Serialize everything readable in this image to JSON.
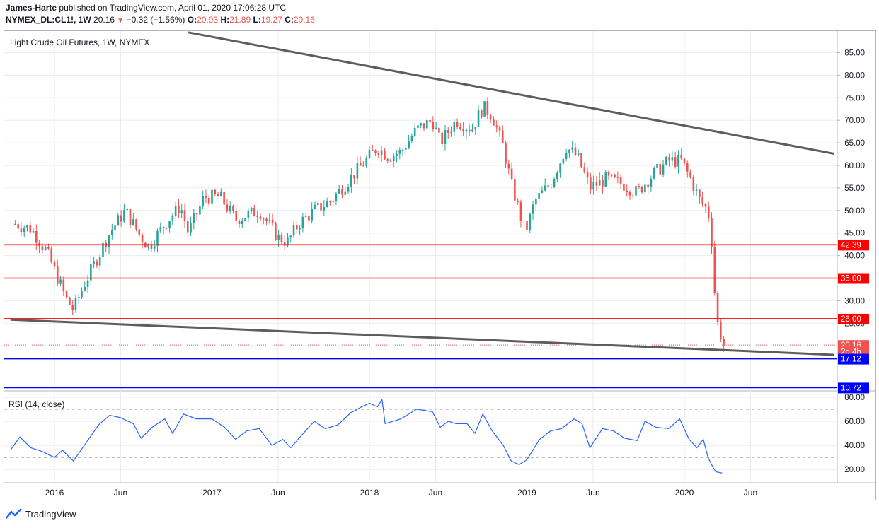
{
  "header": {
    "author": "James-Harte",
    "published": "published on TradingView.com, April 01, 2020 17:06:28 UTC",
    "symbol": "NYMEX_DL:CL1!, 1W",
    "last": "20.16",
    "change": "−0.32 (−1.56%)",
    "o_label": "O:",
    "o": "20.93",
    "h_label": "H:",
    "h": "21.89",
    "l_label": "L:",
    "l": "19.27",
    "c_label": "C:",
    "c": "20.16"
  },
  "footer": {
    "brand": "TradingView"
  },
  "colors": {
    "up": "#26a69a",
    "down": "#ef5350",
    "support": "#ff0000",
    "target": "#0000ff",
    "trend": "#5d5d5d",
    "rsi": "#2962ff",
    "grid": "#e8ebef"
  },
  "chart_data": [
    {
      "type": "candlestick",
      "title": "Light Crude Oil Futures, 1W, NYMEX",
      "ylim": [
        0,
        90
      ],
      "yticks": [
        "85.00",
        "80.00",
        "75.00",
        "70.00",
        "65.00",
        "60.00",
        "55.00",
        "50.00",
        "45.00",
        "40.00",
        "35.00",
        "30.00",
        "25.00"
      ],
      "xticks": [
        "2016",
        "Jun",
        "2017",
        "Jun",
        "2018",
        "Jun",
        "2019",
        "Jun",
        "2020",
        "Jun"
      ],
      "x_period": "2015-10 to 2020-08",
      "close_path": [
        [
          2015.75,
          47
        ],
        [
          2015.85,
          46
        ],
        [
          2015.95,
          41
        ],
        [
          2016.02,
          35
        ],
        [
          2016.08,
          30
        ],
        [
          2016.12,
          28
        ],
        [
          2016.18,
          33
        ],
        [
          2016.25,
          38
        ],
        [
          2016.35,
          45
        ],
        [
          2016.45,
          50
        ],
        [
          2016.55,
          44
        ],
        [
          2016.6,
          42
        ],
        [
          2016.7,
          47
        ],
        [
          2016.8,
          51
        ],
        [
          2016.85,
          45
        ],
        [
          2016.95,
          53
        ],
        [
          2017.05,
          53
        ],
        [
          2017.15,
          48
        ],
        [
          2017.3,
          50
        ],
        [
          2017.42,
          44
        ],
        [
          2017.48,
          43
        ],
        [
          2017.55,
          47
        ],
        [
          2017.65,
          50
        ],
        [
          2017.75,
          52
        ],
        [
          2017.85,
          56
        ],
        [
          2017.95,
          60
        ],
        [
          2018.05,
          64
        ],
        [
          2018.12,
          62
        ],
        [
          2018.2,
          63
        ],
        [
          2018.3,
          68
        ],
        [
          2018.4,
          70
        ],
        [
          2018.45,
          65
        ],
        [
          2018.55,
          70
        ],
        [
          2018.65,
          68
        ],
        [
          2018.72,
          73
        ],
        [
          2018.78,
          71
        ],
        [
          2018.85,
          64
        ],
        [
          2018.9,
          56
        ],
        [
          2018.95,
          50
        ],
        [
          2018.99,
          45
        ],
        [
          2019.05,
          52
        ],
        [
          2019.15,
          56
        ],
        [
          2019.25,
          64
        ],
        [
          2019.32,
          62
        ],
        [
          2019.4,
          55
        ],
        [
          2019.5,
          57
        ],
        [
          2019.6,
          56
        ],
        [
          2019.7,
          54
        ],
        [
          2019.8,
          58
        ],
        [
          2019.9,
          61
        ],
        [
          2019.98,
          61
        ],
        [
          2020.04,
          57
        ],
        [
          2020.1,
          52
        ],
        [
          2020.15,
          50
        ],
        [
          2020.17,
          45
        ],
        [
          2020.19,
          33
        ],
        [
          2020.21,
          25
        ],
        [
          2020.25,
          20.16
        ]
      ],
      "last_price": 20.16,
      "price_labels": [
        {
          "text": "42.39",
          "value": 42.39,
          "color": "#ff0000"
        },
        {
          "text": "35.00",
          "value": 35.0,
          "color": "#ff0000"
        },
        {
          "text": "26.00",
          "value": 26.0,
          "color": "#ff0000"
        },
        {
          "text": "20.16",
          "value": 20.16,
          "color": "#ef5350"
        },
        {
          "text": "2d 4h",
          "value": 18.7,
          "color": "#ef5350"
        },
        {
          "text": "17.12",
          "value": 17.12,
          "color": "#0000ff"
        },
        {
          "text": "10.72",
          "value": 10.72,
          "color": "#0000ff"
        }
      ],
      "horizontal_lines": [
        {
          "value": 42.39,
          "color": "#ff0000"
        },
        {
          "value": 35.0,
          "color": "#ff0000"
        },
        {
          "value": 26.0,
          "color": "#ff0000"
        },
        {
          "value": 17.12,
          "color": "#0000ff"
        },
        {
          "value": 10.72,
          "color": "#0000ff"
        }
      ],
      "trendlines": [
        {
          "from": [
            2016.85,
            89.5
          ],
          "to": [
            2020.95,
            62.6
          ]
        },
        {
          "from": [
            2015.72,
            25.8
          ],
          "to": [
            2020.95,
            18.0
          ]
        }
      ]
    },
    {
      "type": "line",
      "title": "RSI (14, close)",
      "ylim": [
        10,
        82
      ],
      "yticks": [
        "80.00",
        "60.00",
        "40.00",
        "20.00"
      ],
      "guides": [
        70,
        30
      ],
      "series": [
        {
          "points": [
            [
              2015.72,
              36
            ],
            [
              2015.78,
              47
            ],
            [
              2015.85,
              38
            ],
            [
              2015.92,
              35
            ],
            [
              2016.0,
              30
            ],
            [
              2016.05,
              36
            ],
            [
              2016.12,
              27
            ],
            [
              2016.2,
              42
            ],
            [
              2016.28,
              57
            ],
            [
              2016.35,
              65
            ],
            [
              2016.42,
              63
            ],
            [
              2016.5,
              58
            ],
            [
              2016.55,
              46
            ],
            [
              2016.62,
              55
            ],
            [
              2016.7,
              62
            ],
            [
              2016.75,
              50
            ],
            [
              2016.82,
              66
            ],
            [
              2016.9,
              62
            ],
            [
              2017.0,
              62
            ],
            [
              2017.08,
              55
            ],
            [
              2017.15,
              45
            ],
            [
              2017.22,
              52
            ],
            [
              2017.3,
              54
            ],
            [
              2017.38,
              40
            ],
            [
              2017.45,
              45
            ],
            [
              2017.5,
              38
            ],
            [
              2017.58,
              50
            ],
            [
              2017.65,
              60
            ],
            [
              2017.72,
              54
            ],
            [
              2017.8,
              57
            ],
            [
              2017.88,
              67
            ],
            [
              2017.95,
              72
            ],
            [
              2018.0,
              75
            ],
            [
              2018.05,
              72
            ],
            [
              2018.08,
              78
            ],
            [
              2018.1,
              58
            ],
            [
              2018.2,
              62
            ],
            [
              2018.3,
              70
            ],
            [
              2018.4,
              68
            ],
            [
              2018.45,
              55
            ],
            [
              2018.5,
              60
            ],
            [
              2018.55,
              58
            ],
            [
              2018.62,
              58
            ],
            [
              2018.67,
              50
            ],
            [
              2018.72,
              66
            ],
            [
              2018.78,
              52
            ],
            [
              2018.85,
              40
            ],
            [
              2018.9,
              27
            ],
            [
              2018.95,
              24
            ],
            [
              2019.0,
              28
            ],
            [
              2019.08,
              45
            ],
            [
              2019.15,
              52
            ],
            [
              2019.22,
              54
            ],
            [
              2019.3,
              62
            ],
            [
              2019.35,
              58
            ],
            [
              2019.4,
              38
            ],
            [
              2019.48,
              54
            ],
            [
              2019.55,
              52
            ],
            [
              2019.62,
              46
            ],
            [
              2019.7,
              44
            ],
            [
              2019.75,
              60
            ],
            [
              2019.82,
              55
            ],
            [
              2019.9,
              54
            ],
            [
              2019.97,
              62
            ],
            [
              2020.03,
              45
            ],
            [
              2020.08,
              38
            ],
            [
              2020.12,
              45
            ],
            [
              2020.15,
              30
            ],
            [
              2020.18,
              22
            ],
            [
              2020.2,
              18
            ],
            [
              2020.24,
              17
            ]
          ]
        }
      ]
    }
  ]
}
